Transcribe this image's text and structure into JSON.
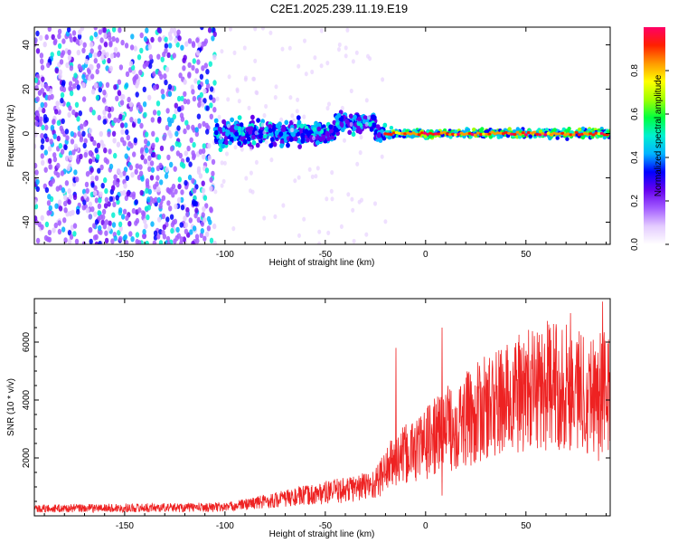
{
  "title": "C2E1.2025.239.11.19.E19",
  "chart_data": [
    {
      "type": "heatmap",
      "title": "",
      "xlabel": "Height of straight line (km)",
      "ylabel": "Frequency (Hz)",
      "xlim": [
        -195,
        92
      ],
      "ylim": [
        -50,
        48
      ],
      "xticks": [
        -150,
        -100,
        -50,
        0,
        50
      ],
      "yticks": [
        -40,
        -20,
        0,
        20,
        40
      ],
      "colorbar": {
        "label": "Normalized spectral amplitude",
        "range": [
          0,
          1
        ],
        "ticks": [
          "0.0",
          "0.2",
          "0.4",
          "0.6",
          "0.8"
        ],
        "colors": [
          "#ffffff",
          "#e4ccff",
          "#a35cff",
          "#6600ee",
          "#0000ff",
          "#00b3ff",
          "#00f0d0",
          "#00ff40",
          "#a0ff00",
          "#ffff00",
          "#ff9900",
          "#ff2000",
          "#ff0066"
        ]
      },
      "regions": [
        {
          "name": "noise",
          "x": [
            -195,
            -105
          ],
          "freq_spread": 48,
          "amplitude": 0.15
        },
        {
          "name": "transition",
          "x": [
            -105,
            -20
          ],
          "center_freq": 0,
          "freq_spread": 10,
          "amplitude": 0.35
        },
        {
          "name": "signal",
          "x": [
            -20,
            92
          ],
          "center_freq": 0,
          "freq_spread": 3,
          "amplitude": 0.75
        }
      ]
    },
    {
      "type": "line",
      "title": "",
      "xlabel": "Height of straight line (km)",
      "ylabel": "SNR (10 * v/v)",
      "xlim": [
        -195,
        92
      ],
      "ylim": [
        0,
        7500
      ],
      "xticks": [
        -150,
        -100,
        -50,
        0,
        50
      ],
      "yticks": [
        2000,
        4000,
        6000
      ],
      "color": "#ee2222",
      "trend": {
        "x": [
          -195,
          -100,
          -80,
          -60,
          -40,
          -25,
          -20,
          -15,
          -10,
          0,
          10,
          20,
          30,
          40,
          50,
          60,
          70,
          80,
          92
        ],
        "y": [
          250,
          300,
          500,
          700,
          900,
          1100,
          1600,
          1900,
          2100,
          2500,
          3000,
          3300,
          3700,
          4000,
          4300,
          4500,
          4500,
          4300,
          4300
        ]
      },
      "spikes": [
        {
          "x": -15,
          "y": 5800
        },
        {
          "x": 8,
          "y": 6500
        },
        {
          "x": 8,
          "y": 700
        },
        {
          "x": 72,
          "y": 7000
        },
        {
          "x": 88,
          "y": 7400
        },
        {
          "x": 86,
          "y": 1900
        }
      ]
    }
  ]
}
